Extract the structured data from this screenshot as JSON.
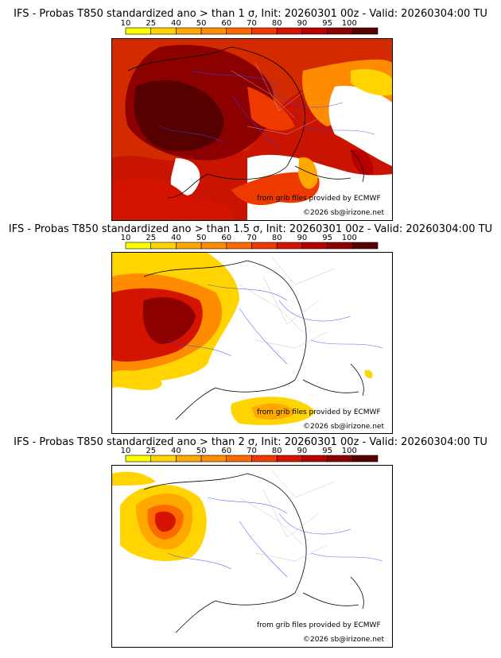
{
  "colorbar": {
    "ticks": [
      "10",
      "25",
      "40",
      "50",
      "60",
      "70",
      "80",
      "90",
      "95",
      "100"
    ],
    "colors": [
      "#ffff00",
      "#ffd400",
      "#ffa800",
      "#ff8c00",
      "#ff6a00",
      "#ee3a00",
      "#d41400",
      "#b80000",
      "#8c0000",
      "#560000"
    ]
  },
  "panels": [
    {
      "title": "IFS - Probas T850  standardized ano > than 1 σ, Init: 20260301 00z - Valid: 20260304:00 TU",
      "credit_source": "from grib files provided by ECMWF",
      "credit_copyright": "©2026 sb@irizone.net"
    },
    {
      "title": "IFS - Probas T850  standardized ano > than 1.5 σ, Init: 20260301 00z - Valid: 20260304:00 TU",
      "credit_source": "from grib files provided by ECMWF",
      "credit_copyright": "©2026 sb@irizone.net"
    },
    {
      "title": "IFS - Probas T850  standardized ano > than 2 σ, Init: 20260301 00z - Valid: 20260304:00 TU",
      "credit_source": "from grib files provided by ECMWF",
      "credit_copyright": "©2026 sb@irizone.net"
    }
  ]
}
